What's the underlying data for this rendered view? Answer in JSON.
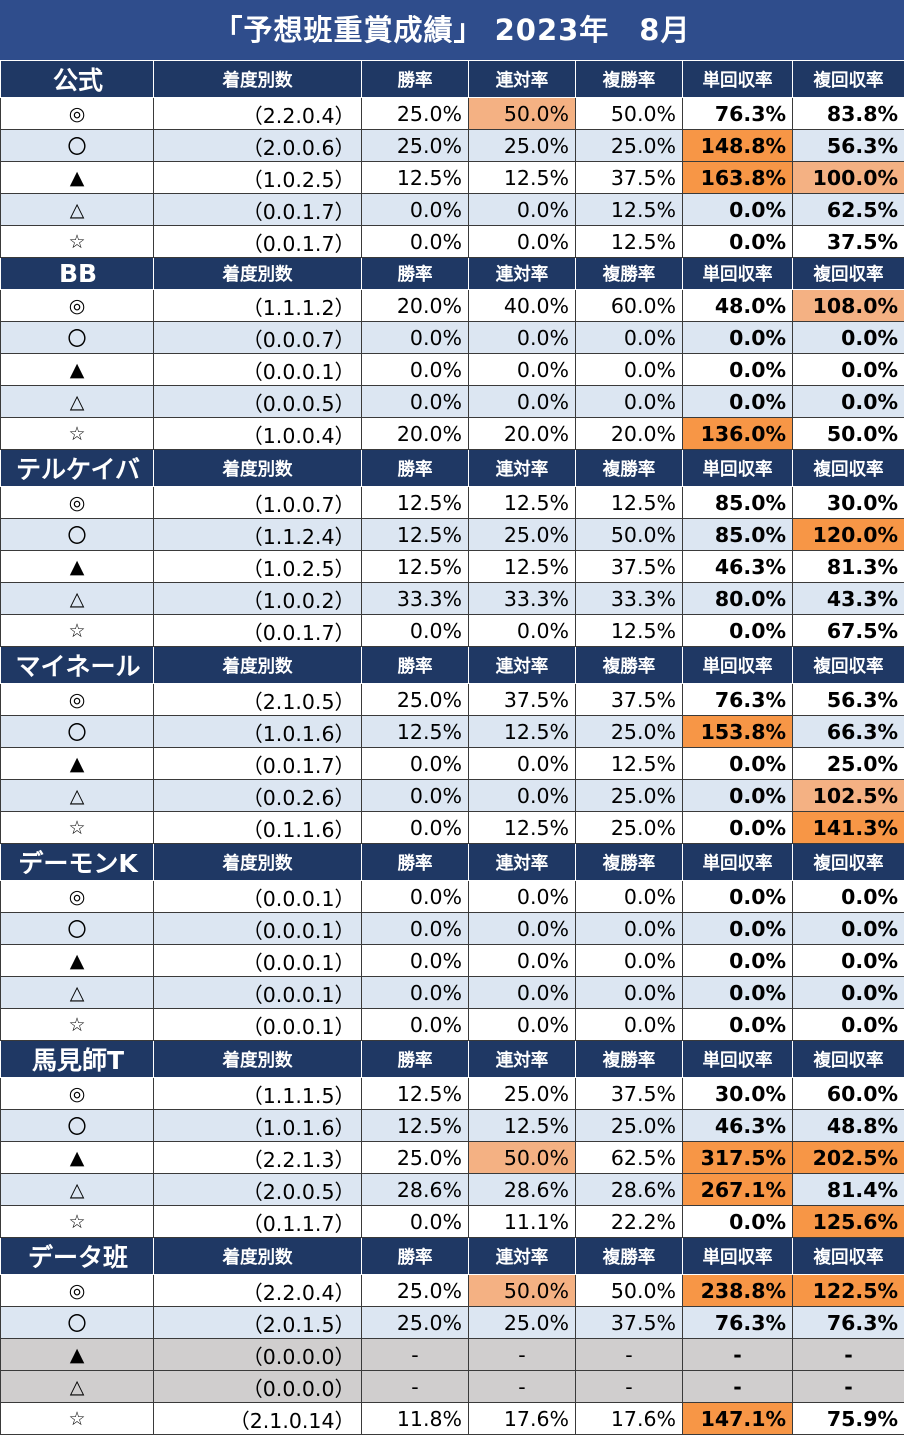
{
  "title": "「予想班重賞成績」 2023年　8月",
  "columns": [
    "着度別数",
    "勝率",
    "連対率",
    "複勝率",
    "単回収率",
    "複回収率"
  ],
  "colors": {
    "header": "#1f3864",
    "title": "#2f4d8c",
    "row_alt": "#dce6f2",
    "row_na": "#d0cece",
    "hl_light": "#f4b183",
    "hl_orange": "#f79646"
  },
  "groups": [
    {
      "name": "公式",
      "rows": [
        {
          "mark": "◎",
          "record": "（2.2.0.4）",
          "win": "25.0%",
          "ren": "50.0%",
          "fuku": "50.0%",
          "tan_ret": "76.3%",
          "fuku_ret": "83.8%",
          "hl": [
            null,
            null,
            "light",
            null,
            null,
            null
          ]
        },
        {
          "mark": "〇",
          "record": "（2.0.0.6）",
          "win": "25.0%",
          "ren": "25.0%",
          "fuku": "25.0%",
          "tan_ret": "148.8%",
          "fuku_ret": "56.3%",
          "hl": [
            null,
            null,
            null,
            null,
            "orange",
            null
          ]
        },
        {
          "mark": "▲",
          "record": "（1.0.2.5）",
          "win": "12.5%",
          "ren": "12.5%",
          "fuku": "37.5%",
          "tan_ret": "163.8%",
          "fuku_ret": "100.0%",
          "hl": [
            null,
            null,
            null,
            null,
            "orange",
            "light"
          ]
        },
        {
          "mark": "△",
          "record": "（0.0.1.7）",
          "win": "0.0%",
          "ren": "0.0%",
          "fuku": "12.5%",
          "tan_ret": "0.0%",
          "fuku_ret": "62.5%",
          "hl": [
            null,
            null,
            null,
            null,
            null,
            null
          ]
        },
        {
          "mark": "☆",
          "record": "（0.0.1.7）",
          "win": "0.0%",
          "ren": "0.0%",
          "fuku": "12.5%",
          "tan_ret": "0.0%",
          "fuku_ret": "37.5%",
          "hl": [
            null,
            null,
            null,
            null,
            null,
            null
          ]
        }
      ]
    },
    {
      "name": "BB",
      "rows": [
        {
          "mark": "◎",
          "record": "（1.1.1.2）",
          "win": "20.0%",
          "ren": "40.0%",
          "fuku": "60.0%",
          "tan_ret": "48.0%",
          "fuku_ret": "108.0%",
          "hl": [
            null,
            null,
            null,
            null,
            null,
            "light"
          ]
        },
        {
          "mark": "〇",
          "record": "（0.0.0.7）",
          "win": "0.0%",
          "ren": "0.0%",
          "fuku": "0.0%",
          "tan_ret": "0.0%",
          "fuku_ret": "0.0%",
          "hl": [
            null,
            null,
            null,
            null,
            null,
            null
          ]
        },
        {
          "mark": "▲",
          "record": "（0.0.0.1）",
          "win": "0.0%",
          "ren": "0.0%",
          "fuku": "0.0%",
          "tan_ret": "0.0%",
          "fuku_ret": "0.0%",
          "hl": [
            null,
            null,
            null,
            null,
            null,
            null
          ]
        },
        {
          "mark": "△",
          "record": "（0.0.0.5）",
          "win": "0.0%",
          "ren": "0.0%",
          "fuku": "0.0%",
          "tan_ret": "0.0%",
          "fuku_ret": "0.0%",
          "hl": [
            null,
            null,
            null,
            null,
            null,
            null
          ]
        },
        {
          "mark": "☆",
          "record": "（1.0.0.4）",
          "win": "20.0%",
          "ren": "20.0%",
          "fuku": "20.0%",
          "tan_ret": "136.0%",
          "fuku_ret": "50.0%",
          "hl": [
            null,
            null,
            null,
            null,
            "orange",
            null
          ]
        }
      ]
    },
    {
      "name": "テルケイバ",
      "rows": [
        {
          "mark": "◎",
          "record": "（1.0.0.7）",
          "win": "12.5%",
          "ren": "12.5%",
          "fuku": "12.5%",
          "tan_ret": "85.0%",
          "fuku_ret": "30.0%",
          "hl": [
            null,
            null,
            null,
            null,
            null,
            null
          ]
        },
        {
          "mark": "〇",
          "record": "（1.1.2.4）",
          "win": "12.5%",
          "ren": "25.0%",
          "fuku": "50.0%",
          "tan_ret": "85.0%",
          "fuku_ret": "120.0%",
          "hl": [
            null,
            null,
            null,
            null,
            null,
            "orange"
          ]
        },
        {
          "mark": "▲",
          "record": "（1.0.2.5）",
          "win": "12.5%",
          "ren": "12.5%",
          "fuku": "37.5%",
          "tan_ret": "46.3%",
          "fuku_ret": "81.3%",
          "hl": [
            null,
            null,
            null,
            null,
            null,
            null
          ]
        },
        {
          "mark": "△",
          "record": "（1.0.0.2）",
          "win": "33.3%",
          "ren": "33.3%",
          "fuku": "33.3%",
          "tan_ret": "80.0%",
          "fuku_ret": "43.3%",
          "hl": [
            null,
            null,
            null,
            null,
            null,
            null
          ]
        },
        {
          "mark": "☆",
          "record": "（0.0.1.7）",
          "win": "0.0%",
          "ren": "0.0%",
          "fuku": "12.5%",
          "tan_ret": "0.0%",
          "fuku_ret": "67.5%",
          "hl": [
            null,
            null,
            null,
            null,
            null,
            null
          ]
        }
      ]
    },
    {
      "name": "マイネール",
      "rows": [
        {
          "mark": "◎",
          "record": "（2.1.0.5）",
          "win": "25.0%",
          "ren": "37.5%",
          "fuku": "37.5%",
          "tan_ret": "76.3%",
          "fuku_ret": "56.3%",
          "hl": [
            null,
            null,
            null,
            null,
            null,
            null
          ]
        },
        {
          "mark": "〇",
          "record": "（1.0.1.6）",
          "win": "12.5%",
          "ren": "12.5%",
          "fuku": "25.0%",
          "tan_ret": "153.8%",
          "fuku_ret": "66.3%",
          "hl": [
            null,
            null,
            null,
            null,
            "orange",
            null
          ]
        },
        {
          "mark": "▲",
          "record": "（0.0.1.7）",
          "win": "0.0%",
          "ren": "0.0%",
          "fuku": "12.5%",
          "tan_ret": "0.0%",
          "fuku_ret": "25.0%",
          "hl": [
            null,
            null,
            null,
            null,
            null,
            null
          ]
        },
        {
          "mark": "△",
          "record": "（0.0.2.6）",
          "win": "0.0%",
          "ren": "0.0%",
          "fuku": "25.0%",
          "tan_ret": "0.0%",
          "fuku_ret": "102.5%",
          "hl": [
            null,
            null,
            null,
            null,
            null,
            "light"
          ]
        },
        {
          "mark": "☆",
          "record": "（0.1.1.6）",
          "win": "0.0%",
          "ren": "12.5%",
          "fuku": "25.0%",
          "tan_ret": "0.0%",
          "fuku_ret": "141.3%",
          "hl": [
            null,
            null,
            null,
            null,
            null,
            "orange"
          ]
        }
      ]
    },
    {
      "name": "デーモンK",
      "rows": [
        {
          "mark": "◎",
          "record": "（0.0.0.1）",
          "win": "0.0%",
          "ren": "0.0%",
          "fuku": "0.0%",
          "tan_ret": "0.0%",
          "fuku_ret": "0.0%",
          "hl": [
            null,
            null,
            null,
            null,
            null,
            null
          ]
        },
        {
          "mark": "〇",
          "record": "（0.0.0.1）",
          "win": "0.0%",
          "ren": "0.0%",
          "fuku": "0.0%",
          "tan_ret": "0.0%",
          "fuku_ret": "0.0%",
          "hl": [
            null,
            null,
            null,
            null,
            null,
            null
          ]
        },
        {
          "mark": "▲",
          "record": "（0.0.0.1）",
          "win": "0.0%",
          "ren": "0.0%",
          "fuku": "0.0%",
          "tan_ret": "0.0%",
          "fuku_ret": "0.0%",
          "hl": [
            null,
            null,
            null,
            null,
            null,
            null
          ]
        },
        {
          "mark": "△",
          "record": "（0.0.0.1）",
          "win": "0.0%",
          "ren": "0.0%",
          "fuku": "0.0%",
          "tan_ret": "0.0%",
          "fuku_ret": "0.0%",
          "hl": [
            null,
            null,
            null,
            null,
            null,
            null
          ]
        },
        {
          "mark": "☆",
          "record": "（0.0.0.1）",
          "win": "0.0%",
          "ren": "0.0%",
          "fuku": "0.0%",
          "tan_ret": "0.0%",
          "fuku_ret": "0.0%",
          "hl": [
            null,
            null,
            null,
            null,
            null,
            null
          ]
        }
      ]
    },
    {
      "name": "馬見師T",
      "rows": [
        {
          "mark": "◎",
          "record": "（1.1.1.5）",
          "win": "12.5%",
          "ren": "25.0%",
          "fuku": "37.5%",
          "tan_ret": "30.0%",
          "fuku_ret": "60.0%",
          "hl": [
            null,
            null,
            null,
            null,
            null,
            null
          ]
        },
        {
          "mark": "〇",
          "record": "（1.0.1.6）",
          "win": "12.5%",
          "ren": "12.5%",
          "fuku": "25.0%",
          "tan_ret": "46.3%",
          "fuku_ret": "48.8%",
          "hl": [
            null,
            null,
            null,
            null,
            null,
            null
          ]
        },
        {
          "mark": "▲",
          "record": "（2.2.1.3）",
          "win": "25.0%",
          "ren": "50.0%",
          "fuku": "62.5%",
          "tan_ret": "317.5%",
          "fuku_ret": "202.5%",
          "hl": [
            null,
            null,
            "light",
            null,
            "orange",
            "orange"
          ]
        },
        {
          "mark": "△",
          "record": "（2.0.0.5）",
          "win": "28.6%",
          "ren": "28.6%",
          "fuku": "28.6%",
          "tan_ret": "267.1%",
          "fuku_ret": "81.4%",
          "hl": [
            null,
            null,
            null,
            null,
            "orange",
            null
          ]
        },
        {
          "mark": "☆",
          "record": "（0.1.1.7）",
          "win": "0.0%",
          "ren": "11.1%",
          "fuku": "22.2%",
          "tan_ret": "0.0%",
          "fuku_ret": "125.6%",
          "hl": [
            null,
            null,
            null,
            null,
            null,
            "orange"
          ]
        }
      ]
    },
    {
      "name": "データ班",
      "rows": [
        {
          "mark": "◎",
          "record": "（2.2.0.4）",
          "win": "25.0%",
          "ren": "50.0%",
          "fuku": "50.0%",
          "tan_ret": "238.8%",
          "fuku_ret": "122.5%",
          "hl": [
            null,
            null,
            "light",
            null,
            "orange",
            "orange"
          ]
        },
        {
          "mark": "〇",
          "record": "（2.0.1.5）",
          "win": "25.0%",
          "ren": "25.0%",
          "fuku": "37.5%",
          "tan_ret": "76.3%",
          "fuku_ret": "76.3%",
          "hl": [
            null,
            null,
            null,
            null,
            null,
            null
          ]
        },
        {
          "mark": "▲",
          "record": "（0.0.0.0）",
          "win": "-",
          "ren": "-",
          "fuku": "-",
          "tan_ret": "-",
          "fuku_ret": "-",
          "na": true,
          "hl": [
            null,
            null,
            null,
            null,
            null,
            null
          ]
        },
        {
          "mark": "△",
          "record": "（0.0.0.0）",
          "win": "-",
          "ren": "-",
          "fuku": "-",
          "tan_ret": "-",
          "fuku_ret": "-",
          "na": true,
          "hl": [
            null,
            null,
            null,
            null,
            null,
            null
          ]
        },
        {
          "mark": "☆",
          "record": "（2.1.0.14）",
          "win": "11.8%",
          "ren": "17.6%",
          "fuku": "17.6%",
          "tan_ret": "147.1%",
          "fuku_ret": "75.9%",
          "hl": [
            null,
            null,
            null,
            null,
            "orange",
            null
          ]
        }
      ]
    }
  ]
}
